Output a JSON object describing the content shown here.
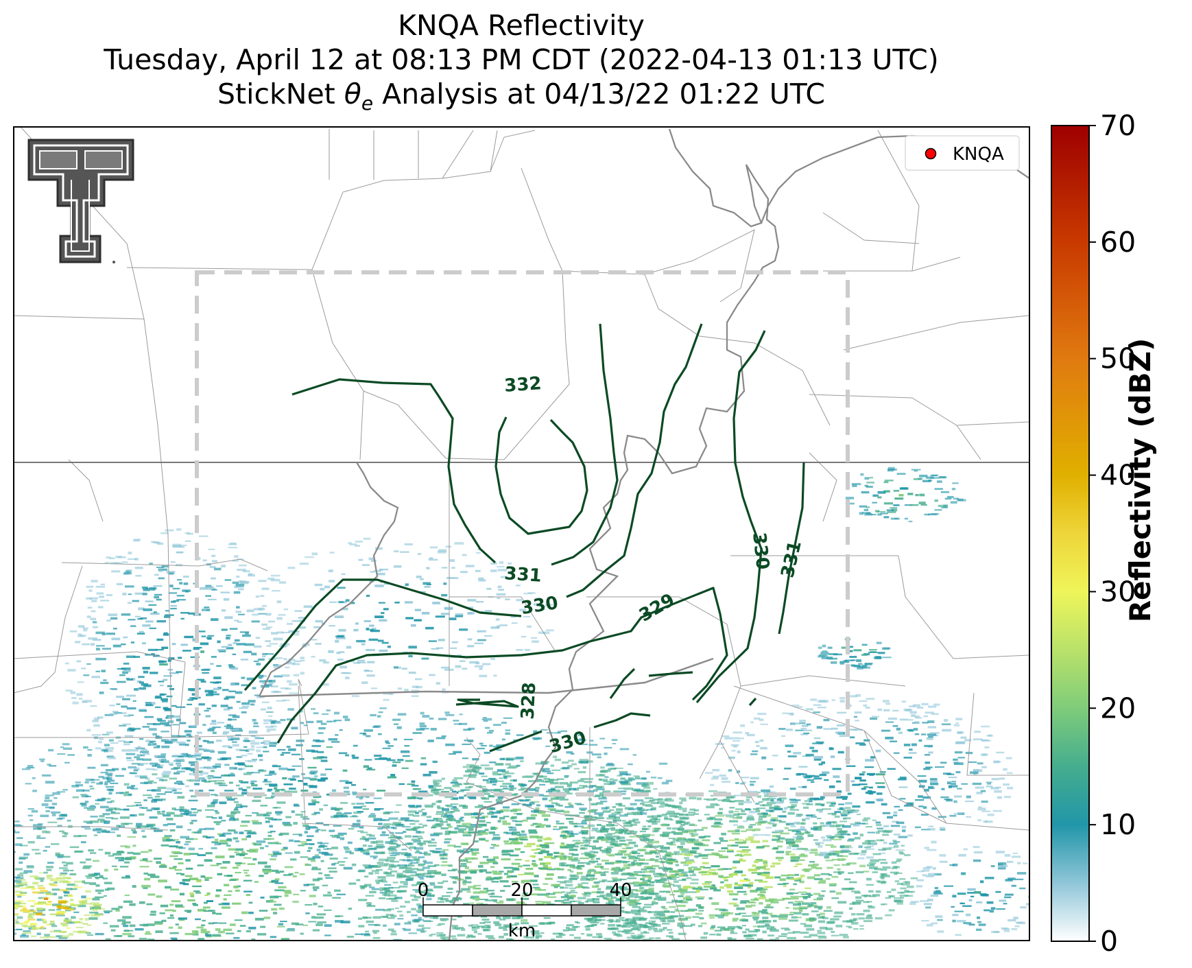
{
  "title": {
    "line1": "KNQA Reflectivity",
    "line2": "Tuesday, April 12 at 08:13 PM CDT (2022-04-13 01:13 UTC)",
    "line3_prefix": "StickNet ",
    "line3_symbol": "θ",
    "line3_subscript": "e",
    "line3_suffix": " Analysis at 04/13/22 01:22 UTC"
  },
  "legend": {
    "marker_color": "#ff0000",
    "label": "KNQA"
  },
  "contours": {
    "color": "#0b4a24",
    "labels": [
      "332",
      "331",
      "330",
      "329",
      "328",
      "330",
      "330",
      "331"
    ]
  },
  "scale_bar": {
    "ticks": [
      "0",
      "20",
      "40"
    ],
    "unit": "km"
  },
  "colorbar": {
    "label": "Reflectivity (dBZ)",
    "ticks": [
      "0",
      "10",
      "20",
      "30",
      "40",
      "50",
      "60",
      "70"
    ],
    "min": 0,
    "max": 70,
    "stops": [
      {
        "v": 0,
        "c": "#ffffff"
      },
      {
        "v": 5,
        "c": "#8fc6d8"
      },
      {
        "v": 10,
        "c": "#2196a8"
      },
      {
        "v": 15,
        "c": "#45ad8e"
      },
      {
        "v": 20,
        "c": "#7fcc7a"
      },
      {
        "v": 25,
        "c": "#b9e26a"
      },
      {
        "v": 30,
        "c": "#eef55a"
      },
      {
        "v": 35,
        "c": "#eed53a"
      },
      {
        "v": 40,
        "c": "#e0b000"
      },
      {
        "v": 50,
        "c": "#e07a10"
      },
      {
        "v": 60,
        "c": "#c83a00"
      },
      {
        "v": 70,
        "c": "#9e0000"
      }
    ]
  },
  "colors": {
    "analysis_box": "#cccccc",
    "state_border": "#777777",
    "river": "#8a8a8a",
    "county": "#999999",
    "logo": "#555555"
  }
}
